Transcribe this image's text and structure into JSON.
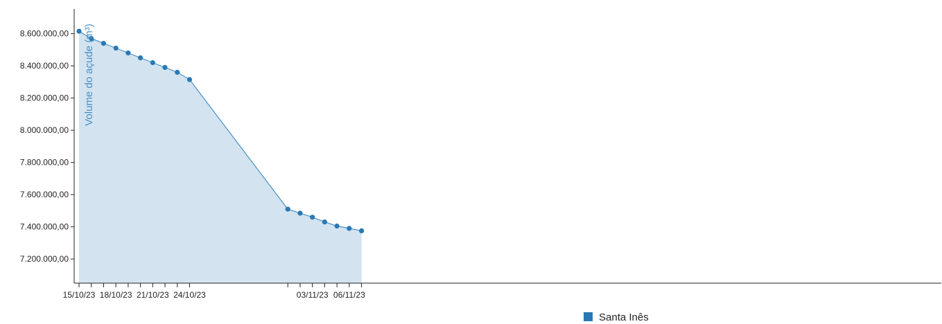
{
  "chart_data": {
    "type": "area",
    "ylabel": "Volume do açude (m³)",
    "ylim": [
      7050000,
      8700000
    ],
    "xlim": [
      "15/10/23",
      "07/11/23"
    ],
    "y_ticks": [
      7200000,
      7400000,
      7600000,
      7800000,
      8000000,
      8200000,
      8400000,
      8600000
    ],
    "y_tick_labels": [
      "7.200.000,00",
      "7.400.000,00",
      "7.600.000,00",
      "7.800.000,00",
      "8.000.000,00",
      "8.200.000,00",
      "8.400.000,00",
      "8.600.000,00"
    ],
    "x_ticks": [
      "15/10/23",
      "16/10/23",
      "17/10/23",
      "18/10/23",
      "19/10/23",
      "20/10/23",
      "21/10/23",
      "22/10/23",
      "23/10/23",
      "24/10/23",
      "01/11/23",
      "02/11/23",
      "03/11/23",
      "04/11/23",
      "05/11/23",
      "06/11/23",
      "07/11/23"
    ],
    "x_tick_labels": [
      "15/10/23",
      "",
      "",
      "18/10/23",
      "",
      "",
      "21/10/23",
      "",
      "",
      "24/10/23",
      "",
      "",
      "03/11/23",
      "",
      "",
      "06/11/23",
      ""
    ],
    "legend_position": "bottom-center",
    "grid": false,
    "colors": {
      "line": "#4a90c4",
      "fill": "#d3e3f0",
      "point": "#2a78b4",
      "axis": "#222222",
      "axis_title": "#4a90c4",
      "legend_swatch": "#2a78b4"
    },
    "series": [
      {
        "name": "Santa Inês",
        "x": [
          "15/10/23",
          "16/10/23",
          "17/10/23",
          "18/10/23",
          "19/10/23",
          "20/10/23",
          "21/10/23",
          "22/10/23",
          "23/10/23",
          "24/10/23",
          "01/11/23",
          "02/11/23",
          "03/11/23",
          "04/11/23",
          "05/11/23",
          "06/11/23",
          "07/11/23"
        ],
        "values": [
          8615000,
          8570000,
          8540000,
          8510000,
          8480000,
          8450000,
          8420000,
          8390000,
          8360000,
          8315000,
          7510000,
          7485000,
          7460000,
          7430000,
          7405000,
          7390000,
          7375000
        ]
      }
    ]
  }
}
